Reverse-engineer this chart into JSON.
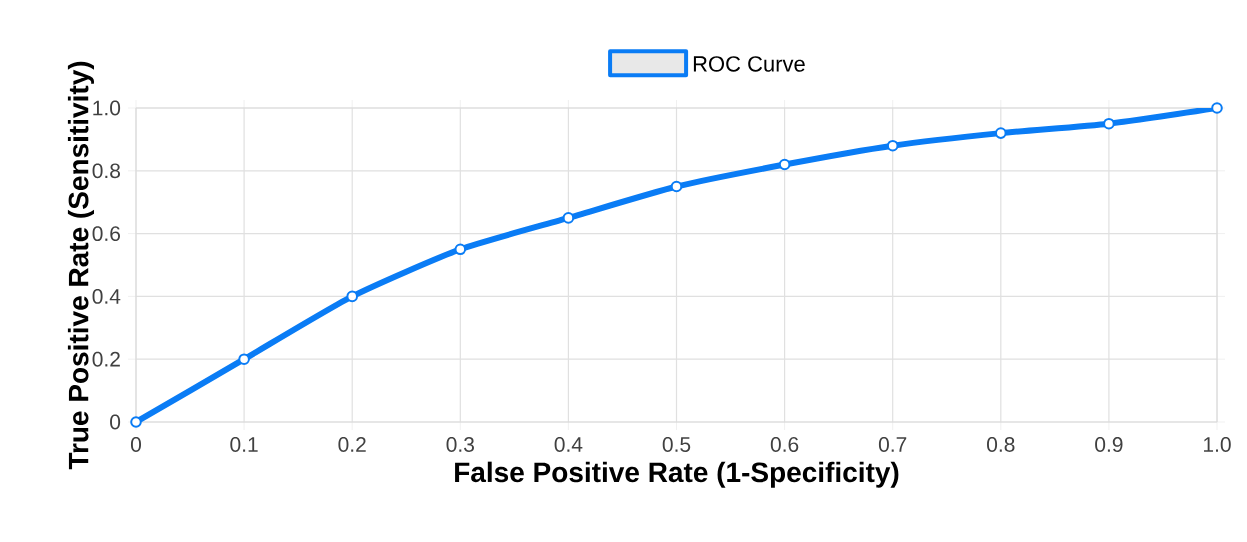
{
  "chart_data": {
    "type": "line",
    "xlabel": "False Positive Rate (1-Specificity)",
    "ylabel": "True Positive Rate (Sensitivity)",
    "categories": [
      "0",
      "0.1",
      "0.2",
      "0.3",
      "0.4",
      "0.5",
      "0.6",
      "0.7",
      "0.8",
      "0.9",
      "1.0"
    ],
    "series": [
      {
        "name": "ROC Curve",
        "color": "#0a7cf5",
        "values": [
          0,
          0.2,
          0.4,
          0.55,
          0.65,
          0.75,
          0.82,
          0.88,
          0.92,
          0.95,
          1.0
        ]
      }
    ],
    "ylim": [
      0,
      1
    ],
    "yticks": [
      0,
      {
        "value": 0.2,
        "label": "0.2"
      },
      {
        "value": 0.4,
        "label": "0.4"
      },
      {
        "value": 0.6,
        "label": "0.6"
      },
      {
        "value": 0.8,
        "label": "0.8"
      },
      {
        "value": 1,
        "label": "1.0"
      }
    ],
    "grid": true,
    "legend": "top",
    "marker": "circle",
    "line_style": "solid"
  }
}
